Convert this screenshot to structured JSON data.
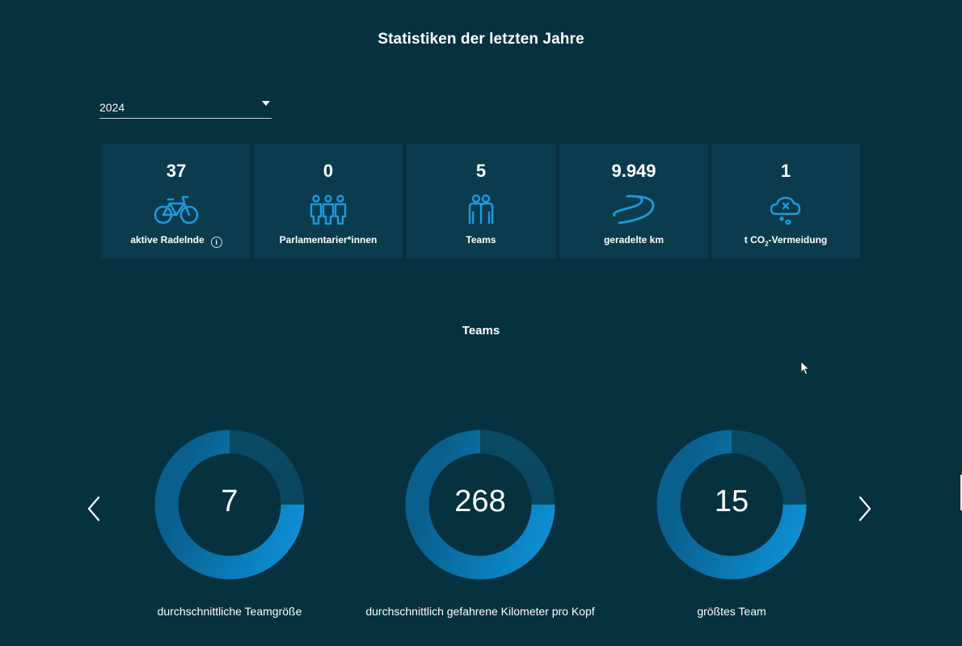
{
  "title": "Statistiken der letzten Jahre",
  "year_select": {
    "value": "2024"
  },
  "stats": [
    {
      "value": "37",
      "label": "aktive Radelnde",
      "icon": "bicycle-icon",
      "has_info": true
    },
    {
      "value": "0",
      "label": "Parlamentarier*innen",
      "icon": "people-group-icon",
      "has_info": false
    },
    {
      "value": "5",
      "label": "Teams",
      "icon": "team-icon",
      "has_info": false
    },
    {
      "value": "9.949",
      "label": "geradelte km",
      "icon": "road-icon",
      "has_info": false
    },
    {
      "value": "1",
      "label_prefix": "t CO",
      "label_sub": "2",
      "label_suffix": "-Vermeidung",
      "icon": "cloud-co2-icon",
      "has_info": false
    }
  ],
  "info_icon_glyph": "i",
  "teams": {
    "heading": "Teams",
    "gauges": [
      {
        "value": "7",
        "label": "durchschnittliche Teamgröße",
        "fill_fraction": 0.75
      },
      {
        "value": "268",
        "label": "durchschnittlich gefahrene Kilometer pro Kopf",
        "fill_fraction": 0.75
      },
      {
        "value": "15",
        "label": "größtes Team",
        "fill_fraction": 0.75
      }
    ]
  },
  "colors": {
    "background": "#06313f",
    "card": "#0a3c4e",
    "accent": "#1a8fd3",
    "accent_light": "#1b9be0",
    "track": "#0b4a63"
  }
}
